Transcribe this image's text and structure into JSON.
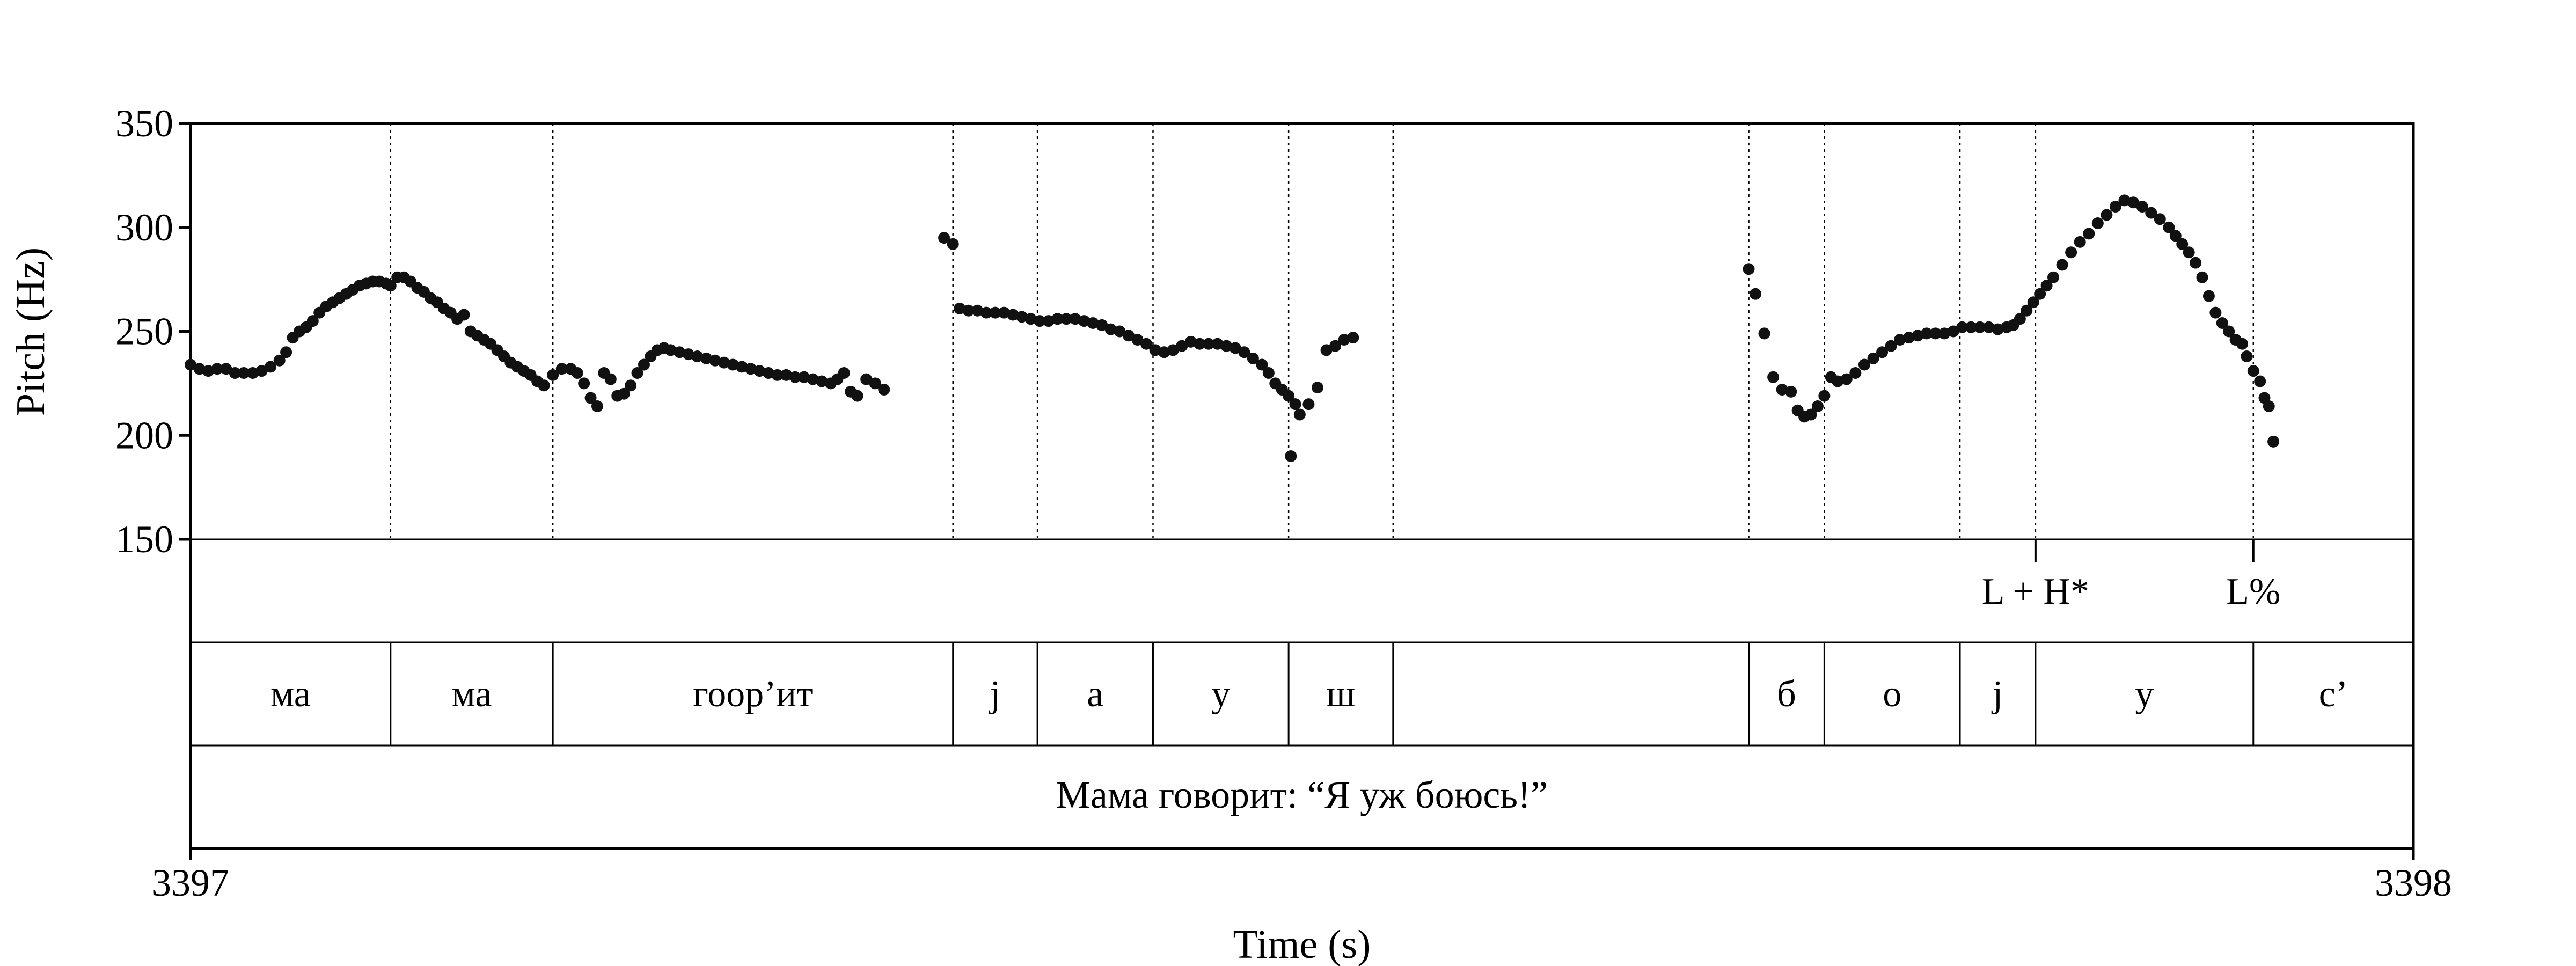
{
  "chart_data": {
    "type": "scatter",
    "xlabel": "Time (s)",
    "ylabel": "Pitch (Hz)",
    "xlim": [
      3397,
      3398
    ],
    "ylim": [
      150,
      350
    ],
    "x_tick_labels": [
      "3397",
      "3398"
    ],
    "y_ticks": [
      150,
      200,
      250,
      300,
      350
    ],
    "y_tick_labels": [
      "150",
      "200",
      "250",
      "300",
      "350"
    ],
    "grid": false,
    "legend": "none",
    "marker_color": "#111111",
    "segment_boundaries": [
      3397.09,
      3397.163,
      3397.343,
      3397.381,
      3397.433,
      3397.494,
      3397.541,
      3397.701,
      3397.735,
      3397.796,
      3397.83,
      3397.928
    ],
    "segments": [
      {
        "label": "ма",
        "start": 3397.0,
        "end": 3397.09
      },
      {
        "label": "ма",
        "start": 3397.09,
        "end": 3397.163
      },
      {
        "label": "гоор’ит",
        "start": 3397.163,
        "end": 3397.343
      },
      {
        "label": "j",
        "start": 3397.343,
        "end": 3397.381
      },
      {
        "label": "а",
        "start": 3397.381,
        "end": 3397.433
      },
      {
        "label": "у",
        "start": 3397.433,
        "end": 3397.494
      },
      {
        "label": "ш",
        "start": 3397.494,
        "end": 3397.541
      },
      {
        "label": "",
        "start": 3397.541,
        "end": 3397.701
      },
      {
        "label": "б",
        "start": 3397.701,
        "end": 3397.735
      },
      {
        "label": "о",
        "start": 3397.735,
        "end": 3397.796
      },
      {
        "label": "j",
        "start": 3397.796,
        "end": 3397.83
      },
      {
        "label": "у",
        "start": 3397.83,
        "end": 3397.928
      },
      {
        "label": "с’",
        "start": 3397.928,
        "end": 3398.0
      }
    ],
    "tones": [
      {
        "label": "L + H*",
        "time": 3397.83
      },
      {
        "label": "L%",
        "time": 3397.928
      }
    ],
    "utterance": "Мама говорит: “Я уж боюсь!”",
    "series": [
      {
        "points": [
          [
            3397.0,
            234
          ],
          [
            3397.004,
            232
          ],
          [
            3397.008,
            231
          ],
          [
            3397.012,
            232
          ],
          [
            3397.016,
            232
          ],
          [
            3397.02,
            230
          ],
          [
            3397.024,
            230
          ],
          [
            3397.028,
            230
          ],
          [
            3397.032,
            231
          ],
          [
            3397.036,
            233
          ],
          [
            3397.04,
            236
          ],
          [
            3397.043,
            240
          ],
          [
            3397.046,
            247
          ],
          [
            3397.049,
            250
          ],
          [
            3397.052,
            252
          ],
          [
            3397.055,
            255
          ],
          [
            3397.058,
            259
          ],
          [
            3397.061,
            262
          ],
          [
            3397.064,
            264
          ],
          [
            3397.067,
            266
          ],
          [
            3397.07,
            268
          ],
          [
            3397.073,
            270
          ],
          [
            3397.076,
            272
          ],
          [
            3397.079,
            273
          ],
          [
            3397.082,
            274
          ],
          [
            3397.085,
            274
          ],
          [
            3397.088,
            273
          ],
          [
            3397.09,
            272
          ],
          [
            3397.093,
            276
          ],
          [
            3397.096,
            276
          ],
          [
            3397.099,
            274
          ],
          [
            3397.102,
            271
          ],
          [
            3397.105,
            269
          ],
          [
            3397.108,
            266
          ],
          [
            3397.111,
            264
          ],
          [
            3397.114,
            261
          ],
          [
            3397.117,
            259
          ],
          [
            3397.12,
            256
          ],
          [
            3397.123,
            258
          ],
          [
            3397.126,
            250
          ],
          [
            3397.129,
            248
          ],
          [
            3397.132,
            246
          ],
          [
            3397.135,
            244
          ],
          [
            3397.138,
            241
          ],
          [
            3397.141,
            238
          ],
          [
            3397.144,
            235
          ],
          [
            3397.147,
            233
          ],
          [
            3397.15,
            231
          ],
          [
            3397.153,
            229
          ],
          [
            3397.156,
            226
          ],
          [
            3397.159,
            224
          ],
          [
            3397.163,
            229
          ],
          [
            3397.167,
            232
          ],
          [
            3397.171,
            232
          ],
          [
            3397.174,
            230
          ],
          [
            3397.177,
            225
          ],
          [
            3397.18,
            218
          ],
          [
            3397.183,
            214
          ],
          [
            3397.186,
            230
          ],
          [
            3397.189,
            227
          ],
          [
            3397.192,
            219
          ],
          [
            3397.195,
            220
          ],
          [
            3397.198,
            224
          ],
          [
            3397.201,
            230
          ],
          [
            3397.204,
            234
          ],
          [
            3397.207,
            238
          ],
          [
            3397.21,
            241
          ],
          [
            3397.213,
            242
          ],
          [
            3397.216,
            241
          ],
          [
            3397.22,
            240
          ],
          [
            3397.224,
            239
          ],
          [
            3397.228,
            238
          ],
          [
            3397.232,
            237
          ],
          [
            3397.236,
            236
          ],
          [
            3397.24,
            235
          ],
          [
            3397.244,
            234
          ],
          [
            3397.248,
            233
          ],
          [
            3397.252,
            232
          ],
          [
            3397.256,
            231
          ],
          [
            3397.26,
            230
          ],
          [
            3397.264,
            229
          ],
          [
            3397.268,
            229
          ],
          [
            3397.272,
            228
          ],
          [
            3397.276,
            228
          ],
          [
            3397.28,
            227
          ],
          [
            3397.284,
            226
          ],
          [
            3397.288,
            225
          ],
          [
            3397.291,
            227
          ],
          [
            3397.294,
            230
          ],
          [
            3397.297,
            221
          ],
          [
            3397.3,
            219
          ],
          [
            3397.304,
            227
          ],
          [
            3397.308,
            225
          ],
          [
            3397.312,
            222
          ],
          [
            3397.339,
            295
          ],
          [
            3397.343,
            292
          ],
          [
            3397.346,
            261
          ],
          [
            3397.35,
            260
          ],
          [
            3397.354,
            260
          ],
          [
            3397.358,
            259
          ],
          [
            3397.362,
            259
          ],
          [
            3397.366,
            259
          ],
          [
            3397.37,
            258
          ],
          [
            3397.374,
            257
          ],
          [
            3397.378,
            256
          ],
          [
            3397.382,
            255
          ],
          [
            3397.386,
            255
          ],
          [
            3397.39,
            256
          ],
          [
            3397.394,
            256
          ],
          [
            3397.398,
            256
          ],
          [
            3397.402,
            255
          ],
          [
            3397.406,
            254
          ],
          [
            3397.41,
            253
          ],
          [
            3397.414,
            251
          ],
          [
            3397.418,
            250
          ],
          [
            3397.422,
            248
          ],
          [
            3397.426,
            246
          ],
          [
            3397.43,
            244
          ],
          [
            3397.434,
            241
          ],
          [
            3397.438,
            240
          ],
          [
            3397.442,
            241
          ],
          [
            3397.446,
            243
          ],
          [
            3397.45,
            245
          ],
          [
            3397.454,
            244
          ],
          [
            3397.458,
            244
          ],
          [
            3397.462,
            244
          ],
          [
            3397.466,
            243
          ],
          [
            3397.47,
            242
          ],
          [
            3397.474,
            240
          ],
          [
            3397.478,
            237
          ],
          [
            3397.482,
            234
          ],
          [
            3397.485,
            230
          ],
          [
            3397.488,
            225
          ],
          [
            3397.491,
            222
          ],
          [
            3397.494,
            219
          ],
          [
            3397.497,
            215
          ],
          [
            3397.495,
            190
          ],
          [
            3397.499,
            210
          ],
          [
            3397.503,
            215
          ],
          [
            3397.507,
            223
          ],
          [
            3397.511,
            241
          ],
          [
            3397.515,
            243
          ],
          [
            3397.519,
            246
          ],
          [
            3397.523,
            247
          ],
          [
            3397.701,
            280
          ],
          [
            3397.704,
            268
          ],
          [
            3397.708,
            249
          ],
          [
            3397.712,
            228
          ],
          [
            3397.716,
            222
          ],
          [
            3397.72,
            221
          ],
          [
            3397.723,
            212
          ],
          [
            3397.726,
            209
          ],
          [
            3397.729,
            210
          ],
          [
            3397.732,
            214
          ],
          [
            3397.735,
            219
          ],
          [
            3397.738,
            228
          ],
          [
            3397.741,
            226
          ],
          [
            3397.745,
            227
          ],
          [
            3397.749,
            230
          ],
          [
            3397.753,
            234
          ],
          [
            3397.757,
            237
          ],
          [
            3397.761,
            240
          ],
          [
            3397.765,
            243
          ],
          [
            3397.769,
            246
          ],
          [
            3397.773,
            247
          ],
          [
            3397.777,
            248
          ],
          [
            3397.781,
            249
          ],
          [
            3397.785,
            249
          ],
          [
            3397.789,
            249
          ],
          [
            3397.793,
            250
          ],
          [
            3397.797,
            252
          ],
          [
            3397.801,
            252
          ],
          [
            3397.805,
            252
          ],
          [
            3397.809,
            252
          ],
          [
            3397.813,
            251
          ],
          [
            3397.817,
            252
          ],
          [
            3397.82,
            253
          ],
          [
            3397.823,
            256
          ],
          [
            3397.826,
            260
          ],
          [
            3397.829,
            264
          ],
          [
            3397.832,
            268
          ],
          [
            3397.835,
            272
          ],
          [
            3397.838,
            276
          ],
          [
            3397.842,
            282
          ],
          [
            3397.846,
            288
          ],
          [
            3397.85,
            293
          ],
          [
            3397.854,
            297
          ],
          [
            3397.858,
            302
          ],
          [
            3397.862,
            306
          ],
          [
            3397.866,
            310
          ],
          [
            3397.87,
            313
          ],
          [
            3397.874,
            312
          ],
          [
            3397.878,
            310
          ],
          [
            3397.882,
            307
          ],
          [
            3397.886,
            304
          ],
          [
            3397.89,
            300
          ],
          [
            3397.893,
            296
          ],
          [
            3397.896,
            292
          ],
          [
            3397.899,
            288
          ],
          [
            3397.902,
            283
          ],
          [
            3397.905,
            276
          ],
          [
            3397.908,
            267
          ],
          [
            3397.911,
            259
          ],
          [
            3397.914,
            254
          ],
          [
            3397.917,
            250
          ],
          [
            3397.92,
            246
          ],
          [
            3397.923,
            244
          ],
          [
            3397.925,
            238
          ],
          [
            3397.928,
            231
          ],
          [
            3397.931,
            226
          ],
          [
            3397.933,
            218
          ],
          [
            3397.935,
            214
          ],
          [
            3397.937,
            197
          ]
        ]
      }
    ]
  }
}
